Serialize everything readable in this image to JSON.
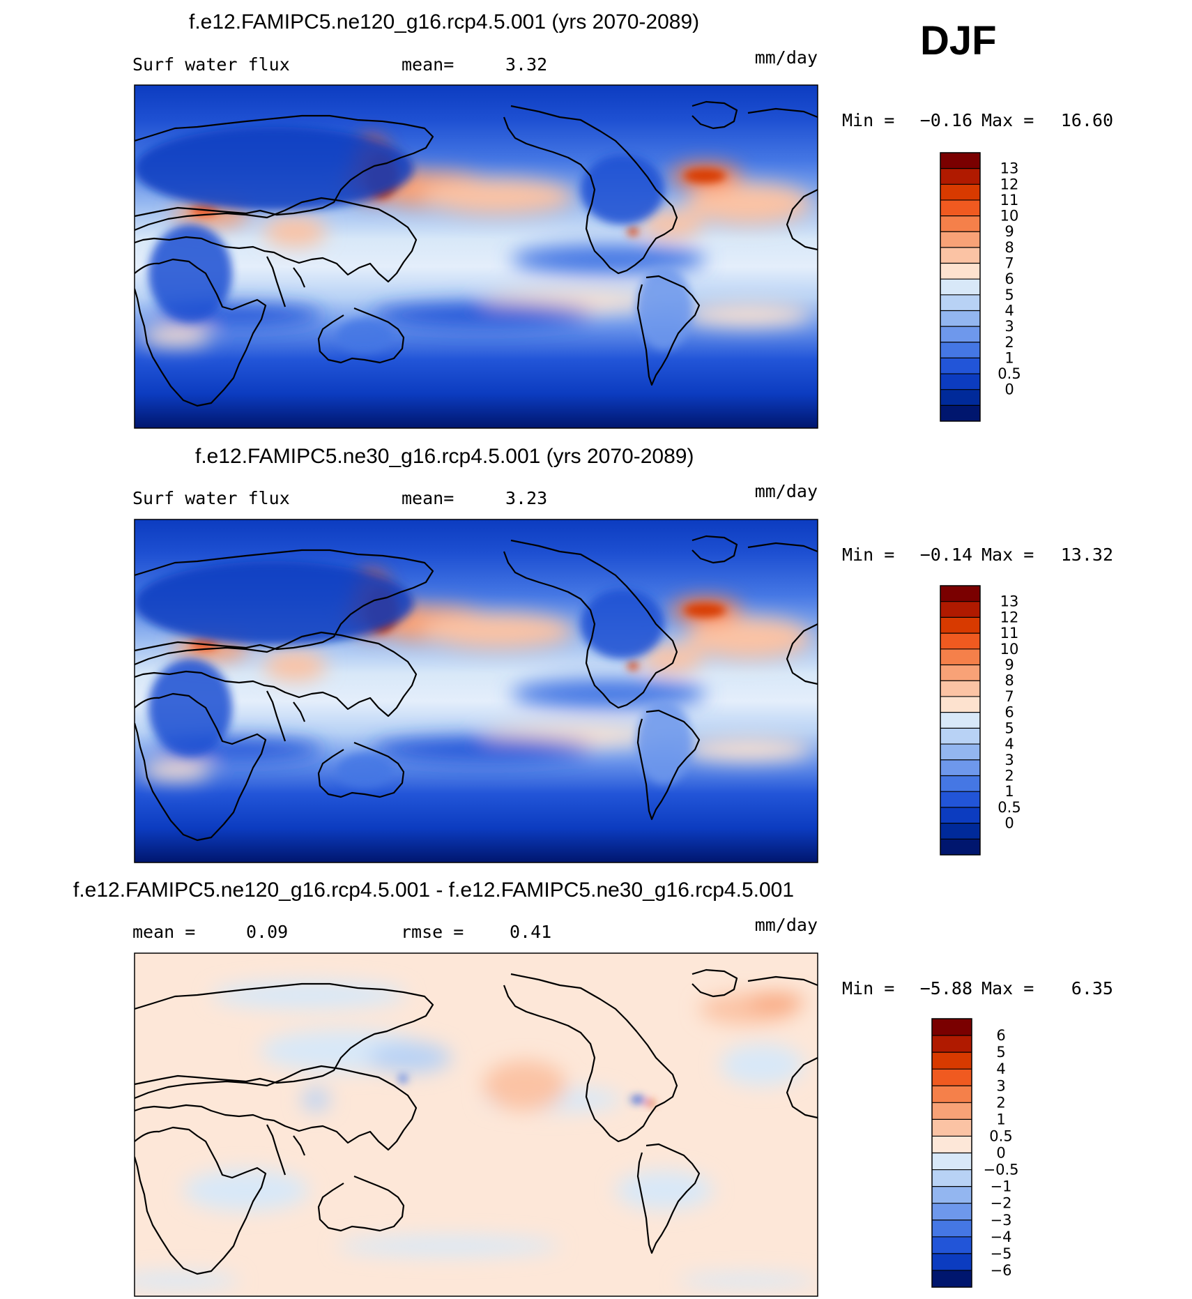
{
  "page": {
    "season": "DJF"
  },
  "panels": [
    {
      "title": "f.e12.FAMIPC5.ne120_g16.rcp4.5.001 (yrs 2070-2089)",
      "left_label": "Surf water flux",
      "center_label": "mean=",
      "center_value": "3.32",
      "units": "mm/day",
      "min_label": "Min =",
      "min_value": "−0.16",
      "max_label": "Max =",
      "max_value": "16.60"
    },
    {
      "title": "f.e12.FAMIPC5.ne30_g16.rcp4.5.001 (yrs 2070-2089)",
      "left_label": "Surf water flux",
      "center_label": "mean=",
      "center_value": "3.23",
      "units": "mm/day",
      "min_label": "Min =",
      "min_value": "−0.14",
      "max_label": "Max =",
      "max_value": "13.32"
    },
    {
      "title": "f.e12.FAMIPC5.ne120_g16.rcp4.5.001 - f.e12.FAMIPC5.ne30_g16.rcp4.5.001",
      "left_label": "mean =",
      "left_value": "0.09",
      "center_label": "rmse =",
      "center_value": "0.41",
      "units": "mm/day",
      "min_label": "Min =",
      "min_value": "−5.88",
      "max_label": "Max =",
      "max_value": "6.35"
    }
  ],
  "chart_data": [
    {
      "type": "heatmap",
      "title": "f.e12.FAMIPC5.ne120_g16.rcp4.5.001 (yrs 2070-2089)",
      "variable": "Surf water flux",
      "units": "mm/day",
      "mean": 3.32,
      "min": -0.16,
      "max": 16.6,
      "colorbar_levels": [
        "13",
        "12",
        "11",
        "10",
        "9",
        "8",
        "7",
        "6",
        "5",
        "4",
        "3",
        "2",
        "1",
        "0.5",
        "0"
      ],
      "colorbar_colors": [
        "#7a0000",
        "#b01a00",
        "#d83a00",
        "#f05a20",
        "#f5804a",
        "#f8a277",
        "#fbc3a4",
        "#fde2cf",
        "#d8e8f8",
        "#b8d2f5",
        "#93b6f0",
        "#6e98ec",
        "#4577e4",
        "#2255d8",
        "#0c3cc0",
        "#002a9a",
        "#00166e"
      ]
    },
    {
      "type": "heatmap",
      "title": "f.e12.FAMIPC5.ne30_g16.rcp4.5.001 (yrs 2070-2089)",
      "variable": "Surf water flux",
      "units": "mm/day",
      "mean": 3.23,
      "min": -0.14,
      "max": 13.32,
      "colorbar_levels": [
        "13",
        "12",
        "11",
        "10",
        "9",
        "8",
        "7",
        "6",
        "5",
        "4",
        "3",
        "2",
        "1",
        "0.5",
        "0"
      ],
      "colorbar_colors": [
        "#7a0000",
        "#b01a00",
        "#d83a00",
        "#f05a20",
        "#f5804a",
        "#f8a277",
        "#fbc3a4",
        "#fde2cf",
        "#d8e8f8",
        "#b8d2f5",
        "#93b6f0",
        "#6e98ec",
        "#4577e4",
        "#2255d8",
        "#0c3cc0",
        "#002a9a",
        "#00166e"
      ]
    },
    {
      "type": "heatmap",
      "title": "f.e12.FAMIPC5.ne120_g16.rcp4.5.001 - f.e12.FAMIPC5.ne30_g16.rcp4.5.001",
      "units": "mm/day",
      "mean": 0.09,
      "rmse": 0.41,
      "min": -5.88,
      "max": 6.35,
      "colorbar_levels": [
        "6",
        "5",
        "4",
        "3",
        "2",
        "1",
        "0.5",
        "0",
        "−0.5",
        "−1",
        "−2",
        "−3",
        "−4",
        "−5",
        "−6"
      ],
      "colorbar_colors": [
        "#7a0000",
        "#b01a00",
        "#d83a00",
        "#f05a20",
        "#f5804a",
        "#f8a277",
        "#fbc3a4",
        "#fde7d8",
        "#d8e8f8",
        "#b8d2f5",
        "#93b6f0",
        "#6e98ec",
        "#4577e4",
        "#2255d8",
        "#0c3cc0",
        "#00166e"
      ]
    }
  ]
}
